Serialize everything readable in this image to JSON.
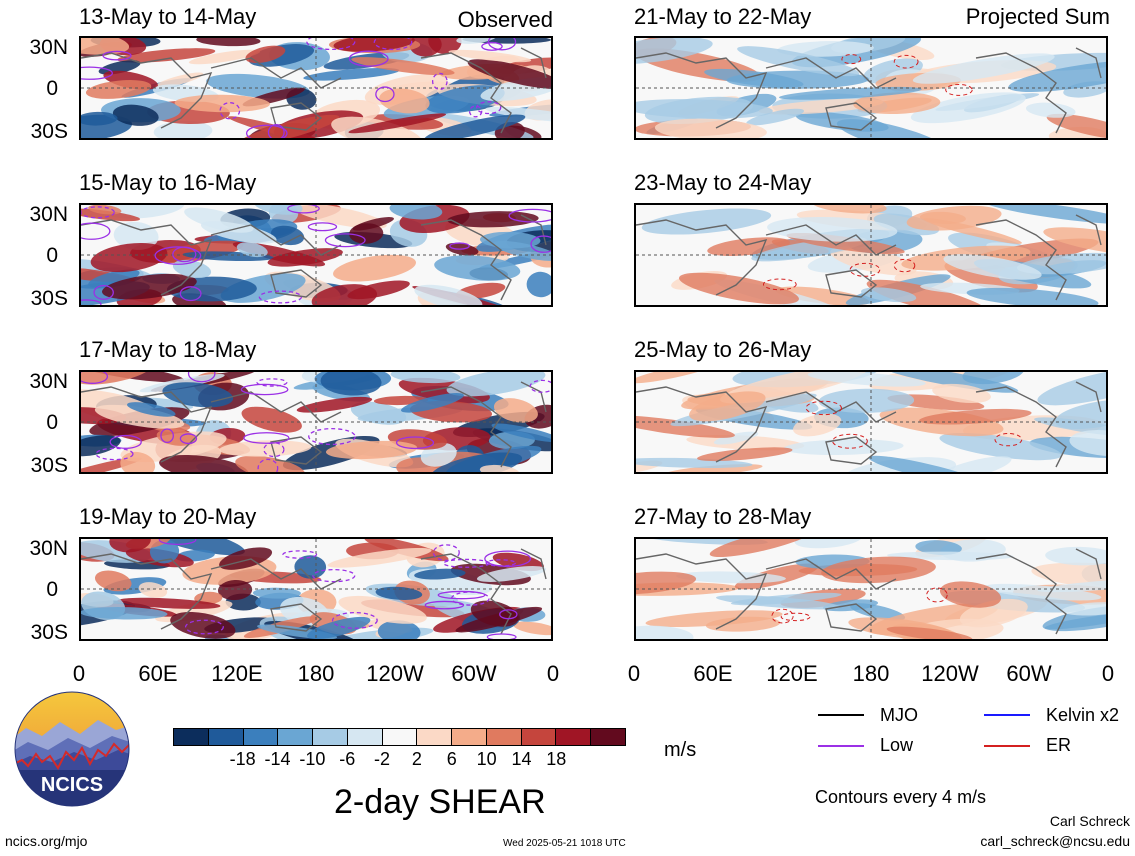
{
  "panels": [
    {
      "title": "13-May to 14-May",
      "label": "Observed"
    },
    {
      "title": "15-May to 16-May",
      "label": ""
    },
    {
      "title": "17-May to 18-May",
      "label": ""
    },
    {
      "title": "19-May to 20-May",
      "label": ""
    },
    {
      "title": "21-May to 22-May",
      "label": "Projected Sum"
    },
    {
      "title": "23-May to 24-May",
      "label": ""
    },
    {
      "title": "25-May to 26-May",
      "label": ""
    },
    {
      "title": "27-May to 28-May",
      "label": ""
    }
  ],
  "lat_labels": [
    "30N",
    "0",
    "30S"
  ],
  "lon_labels": [
    "0",
    "60E",
    "120E",
    "180",
    "120W",
    "60W",
    "0"
  ],
  "colorbar": {
    "colors": [
      "#0c2d5c",
      "#1f5a9a",
      "#3b7fbd",
      "#6aa6d3",
      "#a6cbe5",
      "#d6e7f2",
      "#f8f8f8",
      "#fbd9c6",
      "#f4ac8a",
      "#e07a5f",
      "#c5453d",
      "#a01525",
      "#620a1e"
    ],
    "labels": [
      "-18",
      "-14",
      "-10",
      "-6",
      "-2",
      "2",
      "6",
      "10",
      "14",
      "18"
    ],
    "units": "m/s"
  },
  "legend": [
    {
      "label": "MJO",
      "color": "#000000"
    },
    {
      "label": "Kelvin x2",
      "color": "#1a1aff"
    },
    {
      "label": "Low",
      "color": "#9b30e6"
    },
    {
      "label": "ER",
      "color": "#d42020"
    }
  ],
  "contour_note": "Contours every 4 m/s",
  "main_title": "2-day SHEAR",
  "logo_text": "NCICS",
  "footer": {
    "url": "ncics.org/mjo",
    "timestamp": "Wed 2025-05-21 1018 UTC",
    "author": "Carl Schreck",
    "email": "carl_schreck@ncsu.edu"
  }
}
